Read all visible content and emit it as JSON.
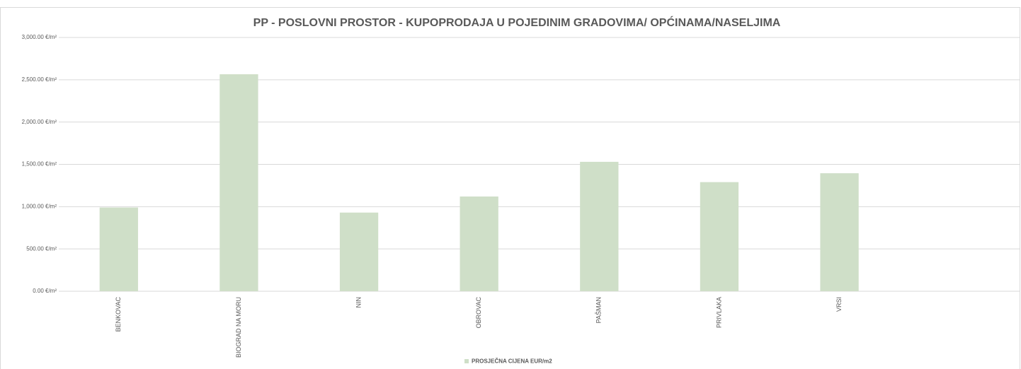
{
  "chart_data": {
    "type": "bar",
    "title": "PP - POSLOVNI PROSTOR - KUPOPRODAJA U POJEDINIM GRADOVIMA/ OPĆINAMA/NASELJIMA",
    "categories": [
      "BENKOVAC",
      "BIOGRAD NA MORU",
      "NIN",
      "OBROVAC",
      "PAŠMAN",
      "PRIVLAKA",
      "VRSI",
      null
    ],
    "series": [
      {
        "name": "PROSJEČNA CIJENA EUR/m2",
        "color": "#cfdfc8",
        "values": [
          990,
          2565,
          930,
          1120,
          1530,
          1290,
          1395,
          null
        ]
      }
    ],
    "ylim": [
      0,
      3000
    ],
    "yticks": [
      {
        "value": 0,
        "label": "0.00 €/m²"
      },
      {
        "value": 500,
        "label": "500.00 €/m²"
      },
      {
        "value": 1000,
        "label": "1,000.00 €/m²"
      },
      {
        "value": 1500,
        "label": "1,500.00 €/m²"
      },
      {
        "value": 2000,
        "label": "2,000.00 €/m²"
      },
      {
        "value": 2500,
        "label": "2,500.00 €/m²"
      },
      {
        "value": 3000,
        "label": "3,000.00 €/m²"
      }
    ],
    "grid": true
  }
}
